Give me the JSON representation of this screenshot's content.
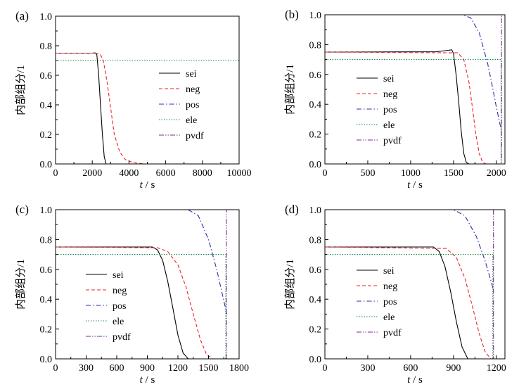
{
  "figure": {
    "ylabel": "内部组分/1",
    "xlabel_italic": "t",
    "xlabel_unit": " / s"
  },
  "chart_data": [
    {
      "type": "line",
      "panel_label": "(a)",
      "xlabel": "t / s",
      "ylabel": "内部组分/1",
      "xlim": [
        0,
        10000
      ],
      "ylim": [
        0,
        1.0
      ],
      "xticks": [
        0,
        2000,
        4000,
        6000,
        8000,
        10000
      ],
      "yticks": [
        0.0,
        0.2,
        0.4,
        0.6,
        0.8,
        1.0
      ],
      "legend_position": "center-right",
      "series": [
        {
          "name": "sei",
          "color": "#000000",
          "dash": "solid",
          "x": [
            0,
            2000,
            2150,
            2250,
            2350,
            2450,
            2550,
            2650,
            2750,
            10000
          ],
          "y": [
            0.75,
            0.75,
            0.752,
            0.74,
            0.6,
            0.4,
            0.2,
            0.05,
            0.0,
            0.0
          ]
        },
        {
          "name": "neg",
          "color": "#e8262b",
          "dash": "dash",
          "x": [
            0,
            2200,
            2450,
            2600,
            2800,
            3000,
            3200,
            3500,
            3800,
            4200,
            4800,
            10000
          ],
          "y": [
            0.75,
            0.75,
            0.74,
            0.7,
            0.56,
            0.38,
            0.2,
            0.08,
            0.03,
            0.01,
            0.0,
            0.0
          ]
        },
        {
          "name": "pos",
          "color": "#2a2fa8",
          "dash": "dashdot",
          "x": [
            0,
            10000
          ],
          "y": [
            1.0,
            1.0
          ]
        },
        {
          "name": "ele",
          "color": "#1a8a4a",
          "dash": "dot",
          "x": [
            0,
            10000
          ],
          "y": [
            0.7,
            0.7
          ]
        },
        {
          "name": "pvdf",
          "color": "#7a2a8c",
          "dash": "dashdotdot",
          "x": [
            0,
            10000
          ],
          "y": [
            1.0,
            1.0
          ]
        }
      ]
    },
    {
      "type": "line",
      "panel_label": "(b)",
      "xlabel": "t / s",
      "ylabel": "内部组分/1",
      "xlim": [
        0,
        2100
      ],
      "ylim": [
        0,
        1.0
      ],
      "xticks": [
        0,
        500,
        1000,
        1500,
        2000
      ],
      "yticks": [
        0.0,
        0.2,
        0.4,
        0.6,
        0.8,
        1.0
      ],
      "legend_position": "center-right",
      "series": [
        {
          "name": "sei",
          "color": "#000000",
          "dash": "solid",
          "x": [
            0,
            1300,
            1480,
            1500,
            1530,
            1560,
            1590,
            1620,
            1650,
            1680,
            2060
          ],
          "y": [
            0.75,
            0.752,
            0.765,
            0.74,
            0.6,
            0.42,
            0.22,
            0.07,
            0.01,
            0.0,
            0.0
          ]
        },
        {
          "name": "neg",
          "color": "#e8262b",
          "dash": "dash",
          "x": [
            0,
            1550,
            1620,
            1680,
            1720,
            1760,
            1800,
            1840,
            1880,
            2060
          ],
          "y": [
            0.75,
            0.745,
            0.7,
            0.55,
            0.38,
            0.2,
            0.07,
            0.01,
            0.0,
            0.0
          ]
        },
        {
          "name": "pos",
          "color": "#2a2fa8",
          "dash": "dashdot",
          "x": [
            0,
            1600,
            1700,
            1800,
            1900,
            1950,
            2000,
            2060
          ],
          "y": [
            1.0,
            1.0,
            0.98,
            0.88,
            0.67,
            0.53,
            0.38,
            0.22
          ]
        },
        {
          "name": "ele",
          "color": "#1a8a4a",
          "dash": "dot",
          "x": [
            0,
            2055,
            2055,
            2060
          ],
          "y": [
            0.7,
            0.7,
            0.0,
            0.0
          ]
        },
        {
          "name": "pvdf",
          "color": "#7a2a8c",
          "dash": "dashdotdot",
          "x": [
            0,
            2060,
            2060
          ],
          "y": [
            1.0,
            1.0,
            0.0
          ]
        }
      ]
    },
    {
      "type": "line",
      "panel_label": "(c)",
      "xlabel": "t / s",
      "ylabel": "内部组分/1",
      "xlim": [
        0,
        1800
      ],
      "ylim": [
        0,
        1.0
      ],
      "xticks": [
        0,
        300,
        600,
        900,
        1200,
        1500,
        1800
      ],
      "yticks": [
        0.0,
        0.2,
        0.4,
        0.6,
        0.8,
        1.0
      ],
      "legend_position": "center-left",
      "series": [
        {
          "name": "sei",
          "color": "#000000",
          "dash": "solid",
          "x": [
            0,
            950,
            1000,
            1050,
            1100,
            1150,
            1200,
            1250,
            1300,
            1680
          ],
          "y": [
            0.75,
            0.75,
            0.73,
            0.66,
            0.52,
            0.34,
            0.16,
            0.04,
            0.0,
            0.0
          ]
        },
        {
          "name": "neg",
          "color": "#e8262b",
          "dash": "dash",
          "x": [
            0,
            1000,
            1100,
            1200,
            1280,
            1350,
            1420,
            1480,
            1540,
            1680
          ],
          "y": [
            0.75,
            0.745,
            0.72,
            0.63,
            0.48,
            0.3,
            0.13,
            0.03,
            0.0,
            0.0
          ]
        },
        {
          "name": "pos",
          "color": "#2a2fa8",
          "dash": "dashdot",
          "x": [
            0,
            1300,
            1400,
            1500,
            1580,
            1640,
            1680
          ],
          "y": [
            1.0,
            1.0,
            0.96,
            0.8,
            0.6,
            0.42,
            0.3
          ]
        },
        {
          "name": "ele",
          "color": "#1a8a4a",
          "dash": "dot",
          "x": [
            0,
            1670,
            1670,
            1680
          ],
          "y": [
            0.7,
            0.7,
            0.0,
            0.0
          ]
        },
        {
          "name": "pvdf",
          "color": "#7a2a8c",
          "dash": "dashdotdot",
          "x": [
            0,
            1675,
            1675
          ],
          "y": [
            1.0,
            1.0,
            0.0
          ]
        }
      ]
    },
    {
      "type": "line",
      "panel_label": "(d)",
      "xlabel": "t / s",
      "ylabel": "内部组分/1",
      "xlim": [
        0,
        1260
      ],
      "ylim": [
        0,
        1.0
      ],
      "xticks": [
        0,
        300,
        600,
        900,
        1200
      ],
      "yticks": [
        0.0,
        0.2,
        0.4,
        0.6,
        0.8,
        1.0
      ],
      "legend_position": "center-left",
      "series": [
        {
          "name": "sei",
          "color": "#000000",
          "dash": "solid",
          "x": [
            0,
            760,
            800,
            840,
            880,
            920,
            960,
            1000,
            1180
          ],
          "y": [
            0.75,
            0.75,
            0.72,
            0.62,
            0.45,
            0.25,
            0.08,
            0.0,
            0.0
          ]
        },
        {
          "name": "neg",
          "color": "#e8262b",
          "dash": "dash",
          "x": [
            0,
            850,
            920,
            980,
            1030,
            1080,
            1120,
            1160,
            1180
          ],
          "y": [
            0.75,
            0.74,
            0.68,
            0.54,
            0.36,
            0.17,
            0.05,
            0.0,
            0.0
          ]
        },
        {
          "name": "pos",
          "color": "#2a2fa8",
          "dash": "dashdot",
          "x": [
            0,
            900,
            980,
            1060,
            1120,
            1160,
            1180
          ],
          "y": [
            1.0,
            1.0,
            0.96,
            0.82,
            0.66,
            0.53,
            0.46
          ]
        },
        {
          "name": "ele",
          "color": "#1a8a4a",
          "dash": "dot",
          "x": [
            0,
            1175,
            1175,
            1180
          ],
          "y": [
            0.7,
            0.7,
            0.0,
            0.0
          ]
        },
        {
          "name": "pvdf",
          "color": "#7a2a8c",
          "dash": "dashdotdot",
          "x": [
            0,
            1180,
            1180
          ],
          "y": [
            1.0,
            1.0,
            0.0
          ]
        }
      ]
    }
  ]
}
